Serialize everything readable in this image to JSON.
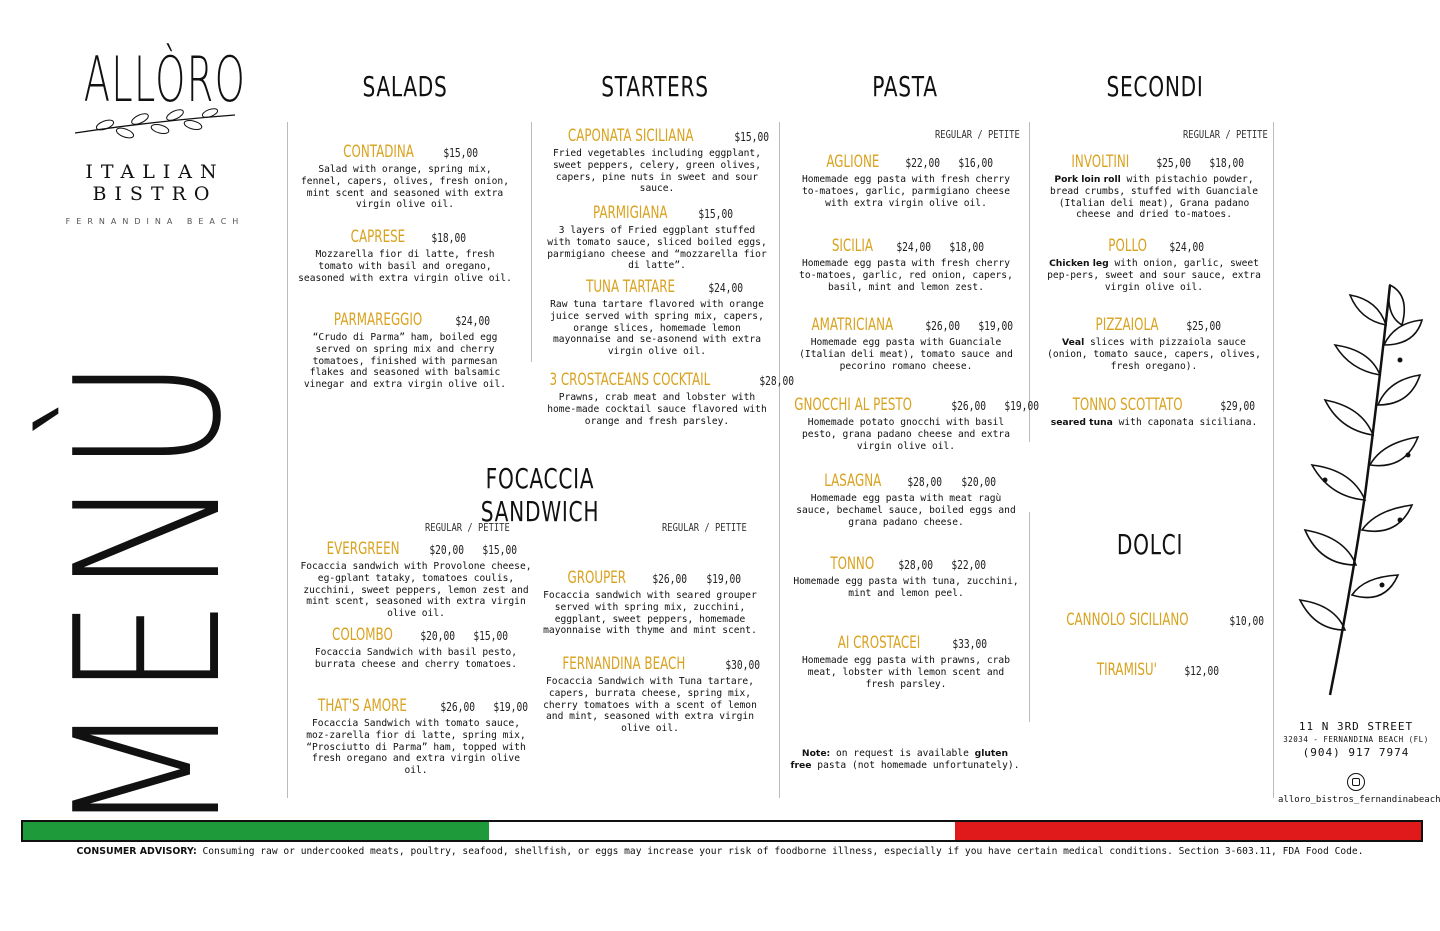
{
  "brand": {
    "name": "ALLÒRO",
    "subtitle": "ITALIAN BISTRO",
    "location": "FERNANDINA BEACH"
  },
  "menu_word": "MENÙ",
  "headings": {
    "salads": "SALADS",
    "starters": "STARTERS",
    "pasta": "PASTA",
    "secondi": "SECONDI",
    "focaccia": "FOCACCIA SANDWICH",
    "dolci": "DOLCI"
  },
  "regular_petite": "REGULAR / PETITE",
  "salads": [
    {
      "name": "CONTADINA",
      "price": "$15,00",
      "desc": "Salad with orange, spring mix, fennel, capers, olives, fresh onion, mint scent and seasoned with extra virgin olive oil."
    },
    {
      "name": "CAPRESE",
      "price": "$18,00",
      "desc": "Mozzarella fior di latte, fresh tomato with basil and oregano, seasoned with extra virgin olive oil."
    },
    {
      "name": "PARMAREGGIO",
      "price": "$24,00",
      "desc": "“Crudo di Parma” ham, boiled egg served on spring mix and cherry tomatoes, finished with parmesan flakes and seasoned with balsamic vinegar and extra virgin olive oil."
    }
  ],
  "starters": [
    {
      "name": "CAPONATA SICILIANA",
      "price": "$15,00",
      "desc": "Fried vegetables including eggplant, sweet peppers, celery, green olives, capers, pine nuts in sweet and sour sauce."
    },
    {
      "name": "PARMIGIANA",
      "price": "$15,00",
      "desc": "3 layers of Fried eggplant stuffed with tomato sauce, sliced boiled eggs, parmigiano cheese and “mozzarella fior di latte”."
    },
    {
      "name": "TUNA TARTARE",
      "price": "$24,00",
      "desc": "Raw tuna tartare flavored with orange juice served with spring mix, capers, orange slices, homemade lemon mayonnaise and se-asonend with extra virgin olive oil."
    },
    {
      "name": "3 CROSTACEANS COCKTAIL",
      "price": "$28,00",
      "desc": "Prawns, crab meat and lobster with home-made cocktail sauce flavored with orange and fresh parsley."
    }
  ],
  "focaccia_left": [
    {
      "name": "EVERGREEN",
      "price": "$20,00",
      "price2": "$15,00",
      "desc": "Focaccia sandwich with Provolone cheese, eg-gplant tataky, tomatoes coulis, zucchini, sweet peppers, lemon zest and mint scent, seasoned with extra virgin olive oil."
    },
    {
      "name": "COLOMBO",
      "price": "$20,00",
      "price2": "$15,00",
      "desc": "Focaccia Sandwich with basil pesto, burrata cheese and cherry tomatoes."
    },
    {
      "name": "THAT'S AMORE",
      "price": "$26,00",
      "price2": "$19,00",
      "desc": "Focaccia Sandwich with tomato sauce, moz-zarella fior di latte, spring mix, “Prosciutto di Parma” ham, topped with fresh oregano and extra virgin olive oil."
    }
  ],
  "focaccia_right": [
    {
      "name": "GROUPER",
      "price": "$26,00",
      "price2": "$19,00",
      "desc": "Focaccia sandwich with seared grouper served with spring mix, zucchini, eggplant, sweet peppers, homemade mayonnaise with thyme and mint scent."
    },
    {
      "name": "FERNANDINA BEACH",
      "price": "$30,00",
      "desc": "Focaccia Sandwich with Tuna tartare, capers, burrata cheese, spring mix, cherry tomatoes with a scent of lemon and mint, seasoned with extra virgin olive oil."
    }
  ],
  "pasta": [
    {
      "name": "AGLIONE",
      "price": "$22,00",
      "price2": "$16,00",
      "desc": "Homemade egg pasta with fresh cherry to-matoes, garlic, parmigiano cheese with extra virgin olive oil."
    },
    {
      "name": "SICILIA",
      "price": "$24,00",
      "price2": "$18,00",
      "desc": "Homemade egg pasta with fresh cherry to-matoes, garlic, red onion, capers, basil, mint and lemon zest."
    },
    {
      "name": "AMATRICIANA",
      "price": "$26,00",
      "price2": "$19,00",
      "desc": "Homemade egg pasta with Guanciale (Italian deli meat), tomato sauce and pecorino romano cheese."
    },
    {
      "name": "GNOCCHI AL PESTO",
      "price": "$26,00",
      "price2": "$19,00",
      "desc": "Homemade potato gnocchi with basil pesto, grana padano cheese and extra virgin olive oil."
    },
    {
      "name": "LASAGNA",
      "price": "$28,00",
      "price2": "$20,00",
      "desc": "Homemade egg pasta with meat ragù sauce, bechamel sauce, boiled eggs and grana padano cheese."
    },
    {
      "name": "TONNO",
      "price": "$28,00",
      "price2": "$22,00",
      "desc": "Homemade egg pasta with tuna, zucchini, mint and lemon peel."
    },
    {
      "name": "AI CROSTACEI",
      "price": "$33,00",
      "desc": "Homemade egg pasta with prawns, crab meat, lobster with lemon scent and fresh parsley."
    }
  ],
  "pasta_note": {
    "label": "Note:",
    "text1": " on request is available ",
    "bold": "gluten free",
    "text2": " pasta (not homemade unfortunately)."
  },
  "secondi": [
    {
      "name": "INVOLTINI",
      "price": "$25,00",
      "price2": "$18,00",
      "bold": "Pork loin roll",
      "desc": " with pistachio powder, bread crumbs, stuffed with Guanciale (Italian deli meat), Grana padano cheese and dried to-matoes."
    },
    {
      "name": "POLLO",
      "price": "$24,00",
      "bold": "Chicken leg",
      "desc": " with onion, garlic, sweet pep-pers, sweet and sour sauce, extra virgin olive oil."
    },
    {
      "name": "PIZZAIOLA",
      "price": "$25,00",
      "bold": "Veal",
      "desc": " slices with pizzaiola sauce (onion, tomato sauce, capers, olives, fresh oregano)."
    },
    {
      "name": "TONNO SCOTTATO",
      "price": "$29,00",
      "bold": "seared tuna",
      "desc": " with caponata siciliana."
    }
  ],
  "dolci": [
    {
      "name": "CANNOLO SICILIANO",
      "price": "$10,00"
    },
    {
      "name": "TIRAMISU'",
      "price": "$12,00"
    }
  ],
  "address": {
    "street": "11 N 3RD STREET",
    "city": "32034 - FERNANDINA BEACH (FL)",
    "phone": "(904) 917 7974",
    "instagram": "alloro_bistros_fernandinabeach"
  },
  "advisory": {
    "label": "CONSUMER ADVISORY:",
    "text": " Consuming raw or undercooked meats, poultry, seafood, shellfish, or eggs may increase your risk of foodborne illness, especially if you have certain medical conditions. Section 3-603.11, FDA Food Code."
  },
  "colors": {
    "accent": "#d9a21e",
    "flag_green": "#1f9a3a",
    "flag_white": "#ffffff",
    "flag_red": "#e01a1a"
  }
}
